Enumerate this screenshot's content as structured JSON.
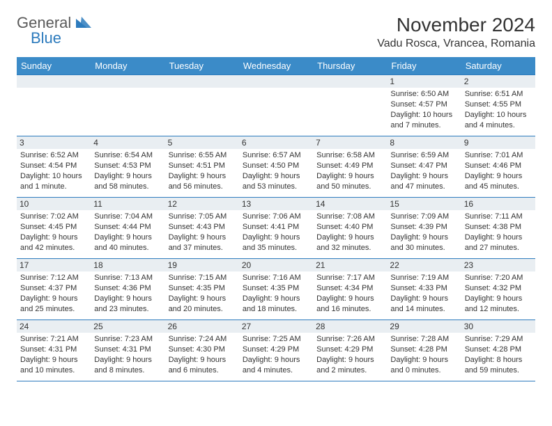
{
  "brand": {
    "part1": "General",
    "part2": "Blue",
    "tri_color": "#2d7bbd"
  },
  "title": "November 2024",
  "location": "Vadu Rosca, Vrancea, Romania",
  "colors": {
    "header_bg": "#3b8bc8",
    "border": "#2d7bbd",
    "daynum_bg": "#e9eef2",
    "text": "#333333",
    "background": "#ffffff"
  },
  "day_headers": [
    "Sunday",
    "Monday",
    "Tuesday",
    "Wednesday",
    "Thursday",
    "Friday",
    "Saturday"
  ],
  "weeks": [
    [
      null,
      null,
      null,
      null,
      null,
      {
        "n": "1",
        "sr": "6:50 AM",
        "ss": "4:57 PM",
        "dl": "10 hours and 7 minutes."
      },
      {
        "n": "2",
        "sr": "6:51 AM",
        "ss": "4:55 PM",
        "dl": "10 hours and 4 minutes."
      }
    ],
    [
      {
        "n": "3",
        "sr": "6:52 AM",
        "ss": "4:54 PM",
        "dl": "10 hours and 1 minute."
      },
      {
        "n": "4",
        "sr": "6:54 AM",
        "ss": "4:53 PM",
        "dl": "9 hours and 58 minutes."
      },
      {
        "n": "5",
        "sr": "6:55 AM",
        "ss": "4:51 PM",
        "dl": "9 hours and 56 minutes."
      },
      {
        "n": "6",
        "sr": "6:57 AM",
        "ss": "4:50 PM",
        "dl": "9 hours and 53 minutes."
      },
      {
        "n": "7",
        "sr": "6:58 AM",
        "ss": "4:49 PM",
        "dl": "9 hours and 50 minutes."
      },
      {
        "n": "8",
        "sr": "6:59 AM",
        "ss": "4:47 PM",
        "dl": "9 hours and 47 minutes."
      },
      {
        "n": "9",
        "sr": "7:01 AM",
        "ss": "4:46 PM",
        "dl": "9 hours and 45 minutes."
      }
    ],
    [
      {
        "n": "10",
        "sr": "7:02 AM",
        "ss": "4:45 PM",
        "dl": "9 hours and 42 minutes."
      },
      {
        "n": "11",
        "sr": "7:04 AM",
        "ss": "4:44 PM",
        "dl": "9 hours and 40 minutes."
      },
      {
        "n": "12",
        "sr": "7:05 AM",
        "ss": "4:43 PM",
        "dl": "9 hours and 37 minutes."
      },
      {
        "n": "13",
        "sr": "7:06 AM",
        "ss": "4:41 PM",
        "dl": "9 hours and 35 minutes."
      },
      {
        "n": "14",
        "sr": "7:08 AM",
        "ss": "4:40 PM",
        "dl": "9 hours and 32 minutes."
      },
      {
        "n": "15",
        "sr": "7:09 AM",
        "ss": "4:39 PM",
        "dl": "9 hours and 30 minutes."
      },
      {
        "n": "16",
        "sr": "7:11 AM",
        "ss": "4:38 PM",
        "dl": "9 hours and 27 minutes."
      }
    ],
    [
      {
        "n": "17",
        "sr": "7:12 AM",
        "ss": "4:37 PM",
        "dl": "9 hours and 25 minutes."
      },
      {
        "n": "18",
        "sr": "7:13 AM",
        "ss": "4:36 PM",
        "dl": "9 hours and 23 minutes."
      },
      {
        "n": "19",
        "sr": "7:15 AM",
        "ss": "4:35 PM",
        "dl": "9 hours and 20 minutes."
      },
      {
        "n": "20",
        "sr": "7:16 AM",
        "ss": "4:35 PM",
        "dl": "9 hours and 18 minutes."
      },
      {
        "n": "21",
        "sr": "7:17 AM",
        "ss": "4:34 PM",
        "dl": "9 hours and 16 minutes."
      },
      {
        "n": "22",
        "sr": "7:19 AM",
        "ss": "4:33 PM",
        "dl": "9 hours and 14 minutes."
      },
      {
        "n": "23",
        "sr": "7:20 AM",
        "ss": "4:32 PM",
        "dl": "9 hours and 12 minutes."
      }
    ],
    [
      {
        "n": "24",
        "sr": "7:21 AM",
        "ss": "4:31 PM",
        "dl": "9 hours and 10 minutes."
      },
      {
        "n": "25",
        "sr": "7:23 AM",
        "ss": "4:31 PM",
        "dl": "9 hours and 8 minutes."
      },
      {
        "n": "26",
        "sr": "7:24 AM",
        "ss": "4:30 PM",
        "dl": "9 hours and 6 minutes."
      },
      {
        "n": "27",
        "sr": "7:25 AM",
        "ss": "4:29 PM",
        "dl": "9 hours and 4 minutes."
      },
      {
        "n": "28",
        "sr": "7:26 AM",
        "ss": "4:29 PM",
        "dl": "9 hours and 2 minutes."
      },
      {
        "n": "29",
        "sr": "7:28 AM",
        "ss": "4:28 PM",
        "dl": "9 hours and 0 minutes."
      },
      {
        "n": "30",
        "sr": "7:29 AM",
        "ss": "4:28 PM",
        "dl": "8 hours and 59 minutes."
      }
    ]
  ],
  "labels": {
    "sunrise": "Sunrise: ",
    "sunset": "Sunset: ",
    "daylight": "Daylight: "
  }
}
